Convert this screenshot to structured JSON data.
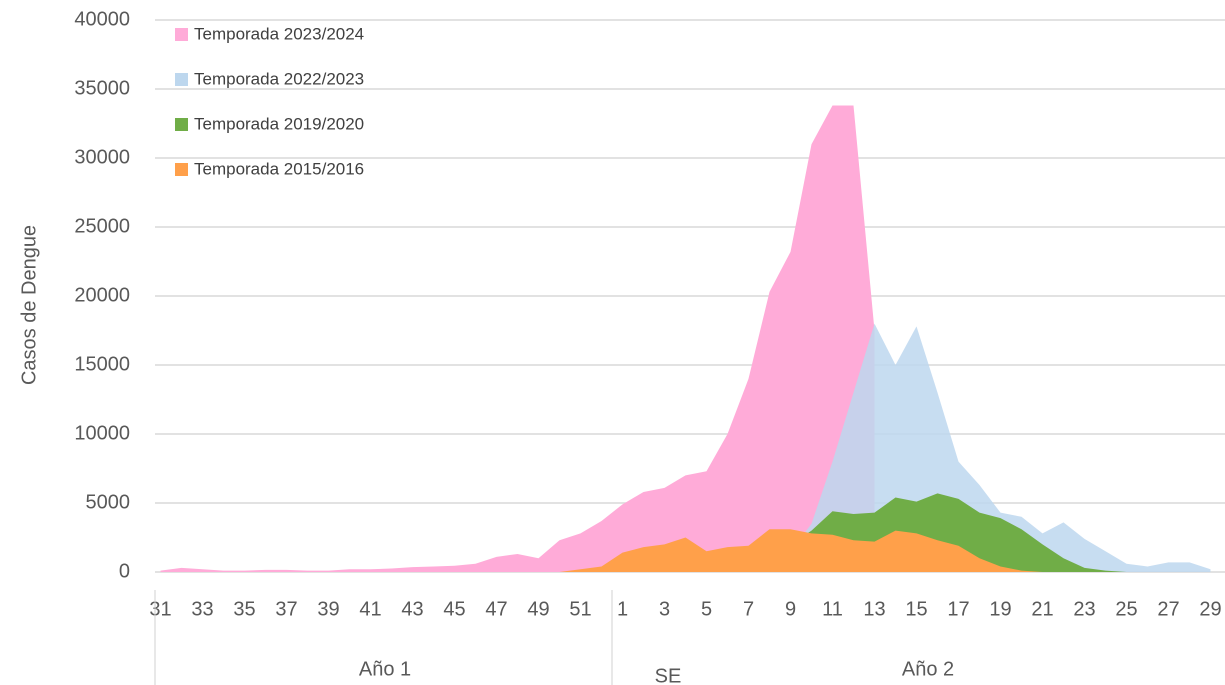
{
  "chart_data": {
    "type": "area",
    "y_label": "Casos de Dengue",
    "annotations": [
      "Año 1",
      "SE",
      "Año 2"
    ],
    "categories": [
      "31",
      null,
      "33",
      null,
      "35",
      null,
      "37",
      null,
      "39",
      null,
      "41",
      null,
      "43",
      null,
      "45",
      null,
      "47",
      null,
      "49",
      null,
      "51",
      null,
      "1",
      null,
      "3",
      null,
      "5",
      null,
      "7",
      null,
      "9",
      null,
      "11",
      null,
      "13",
      null,
      "15",
      null,
      "17",
      null,
      "19",
      null,
      "21",
      null,
      "23",
      null,
      "25",
      null,
      "27",
      null,
      "29"
    ],
    "series": [
      {
        "name": "Temporada 2023/2024",
        "color": "#ffabd8",
        "opacity": 1,
        "values": [
          100,
          300,
          200,
          100,
          100,
          150,
          150,
          100,
          100,
          200,
          200,
          250,
          350,
          400,
          450,
          600,
          1100,
          1300,
          1000,
          2300,
          2800,
          3700,
          4900,
          5800,
          6100,
          7000,
          7300,
          10000,
          14000,
          20300,
          23200,
          31000,
          33800,
          33800,
          17500,
          null,
          null,
          null,
          null,
          null,
          null,
          null,
          null,
          null,
          null,
          null,
          null,
          null,
          null,
          null,
          null
        ]
      },
      {
        "name": "Temporada 2022/2023",
        "color": "#bdd7ee",
        "opacity": 0.85,
        "values": [
          0,
          0,
          0,
          0,
          0,
          0,
          0,
          0,
          0,
          0,
          0,
          0,
          0,
          0,
          0,
          0,
          0,
          0,
          0,
          0,
          0,
          0,
          0,
          0,
          0,
          100,
          200,
          300,
          500,
          800,
          1500,
          3500,
          8000,
          13000,
          18000,
          15000,
          17800,
          13000,
          8000,
          6300,
          4300,
          4000,
          2800,
          3600,
          2400,
          1500,
          600,
          400,
          700,
          700,
          200
        ]
      },
      {
        "name": "Temporada 2019/2020",
        "color": "#70ad47",
        "opacity": 1,
        "values": [
          0,
          0,
          0,
          0,
          0,
          0,
          0,
          0,
          0,
          0,
          0,
          0,
          0,
          0,
          0,
          0,
          0,
          0,
          0,
          0,
          0,
          0,
          100,
          100,
          100,
          200,
          200,
          300,
          700,
          1200,
          2000,
          3000,
          4400,
          4200,
          4300,
          5400,
          5100,
          5700,
          5300,
          4300,
          3900,
          3100,
          2000,
          1000,
          300,
          100,
          0,
          0,
          0,
          0,
          0
        ]
      },
      {
        "name": "Temporada 2015/2016",
        "color": "#ffa04a",
        "opacity": 1,
        "values": [
          0,
          0,
          0,
          0,
          0,
          0,
          0,
          0,
          0,
          0,
          0,
          0,
          0,
          0,
          0,
          0,
          0,
          0,
          0,
          0,
          200,
          400,
          1400,
          1800,
          2000,
          2500,
          1500,
          1800,
          1900,
          3100,
          3100,
          2800,
          2700,
          2300,
          2200,
          3000,
          2800,
          2300,
          1900,
          1000,
          400,
          100,
          0,
          0,
          0,
          0,
          0,
          0,
          0,
          0,
          0
        ]
      }
    ],
    "ylim": [
      0,
      40000
    ],
    "yticks": [
      0,
      5000,
      10000,
      15000,
      20000,
      25000,
      30000,
      35000,
      40000
    ],
    "grid": true,
    "legend": "upper left"
  }
}
